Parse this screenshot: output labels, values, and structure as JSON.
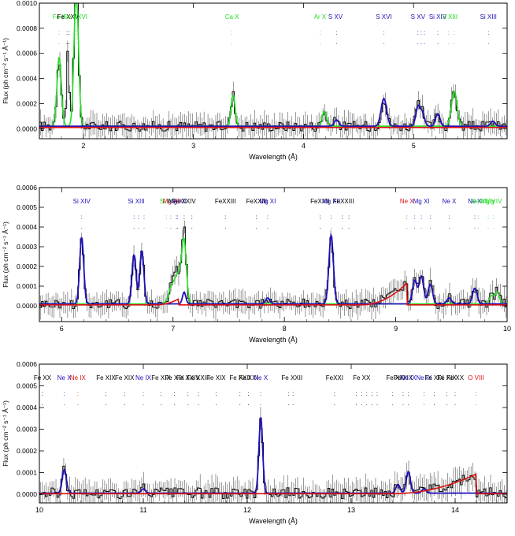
{
  "colors": {
    "data": "#000000",
    "data_fill": "#8c8c8c",
    "model_blue": "#1f10b8",
    "model_green": "#22dd22",
    "model_red": "#dd1111",
    "line_black": "#000000"
  },
  "chart_data": [
    {
      "type": "line",
      "xlabel": "Wavelength (Å)",
      "ylabel": "Flux (ph cm⁻² s⁻¹ Å⁻¹)",
      "xlim": [
        1.6,
        5.85
      ],
      "ylim": [
        -8e-05,
        0.001
      ],
      "xticks": [
        2,
        3,
        4,
        5
      ],
      "yticks": [
        0.0,
        0.0002,
        0.0004,
        0.0006,
        0.0008,
        0.001
      ],
      "ytick_labels": [
        "0.0000",
        "0.0002",
        "0.0004",
        "0.0006",
        "0.0008",
        "0.0010"
      ],
      "baseline": 2e-05,
      "noise": 4e-05,
      "lines": [
        {
          "label": "Fe K",
          "x": 1.78,
          "color": "green",
          "dots": [
            1.78
          ]
        },
        {
          "label": "Fe XXV",
          "x": 1.86,
          "color": "black",
          "dots": [
            1.85,
            1.87
          ]
        },
        {
          "label": "Fe XXVI",
          "x": 1.93,
          "color": "green",
          "dots": [
            1.92,
            1.94
          ]
        },
        {
          "label": "Ca X",
          "x": 3.35,
          "color": "green",
          "dots": [
            3.35
          ]
        },
        {
          "label": "Ar X",
          "x": 4.15,
          "color": "green",
          "dots": [
            4.15
          ]
        },
        {
          "label": "S XV",
          "x": 4.29,
          "color": "blue",
          "dots": [
            4.3
          ]
        },
        {
          "label": "S XVI",
          "x": 4.73,
          "color": "blue",
          "dots": [
            4.73
          ]
        },
        {
          "label": "S XV",
          "x": 5.04,
          "color": "blue",
          "dots": [
            5.04,
            5.07,
            5.1
          ]
        },
        {
          "label": "Si XIV",
          "x": 5.22,
          "color": "blue",
          "dots": [
            5.22
          ]
        },
        {
          "label": "S XIII",
          "x": 5.33,
          "color": "green",
          "dots": [
            5.32,
            5.37
          ]
        },
        {
          "label": "Si XIII",
          "x": 5.68,
          "color": "blue",
          "dots": [
            5.68
          ]
        }
      ],
      "peaks": [
        {
          "x": 1.78,
          "h": 0.00055,
          "w": 0.02,
          "c": "green"
        },
        {
          "x": 1.86,
          "h": 0.0006,
          "w": 0.012,
          "c": "data"
        },
        {
          "x": 1.935,
          "h": 0.0011,
          "w": 0.02,
          "c": "green"
        },
        {
          "x": 3.36,
          "h": 0.00025,
          "w": 0.018,
          "c": "green"
        },
        {
          "x": 4.19,
          "h": 0.00012,
          "w": 0.02,
          "c": "green"
        },
        {
          "x": 4.3,
          "h": 5e-05,
          "w": 0.02,
          "c": "blue"
        },
        {
          "x": 4.73,
          "h": 0.00022,
          "w": 0.025,
          "c": "blue"
        },
        {
          "x": 5.04,
          "h": 0.00015,
          "w": 0.02,
          "c": "blue"
        },
        {
          "x": 5.08,
          "h": 0.0001,
          "w": 0.02,
          "c": "blue"
        },
        {
          "x": 5.22,
          "h": 0.0001,
          "w": 0.02,
          "c": "blue"
        },
        {
          "x": 5.37,
          "h": 0.00028,
          "w": 0.025,
          "c": "green"
        },
        {
          "x": 5.72,
          "h": 4e-05,
          "w": 0.02,
          "c": "blue"
        }
      ],
      "red_ramps": []
    },
    {
      "type": "line",
      "xlabel": "Wavelength (Å)",
      "ylabel": "Flux (ph cm⁻² s⁻¹ Å⁻¹)",
      "xlim": [
        5.8,
        10.0
      ],
      "ylim": [
        -8e-05,
        0.0006
      ],
      "xticks": [
        6,
        7,
        8,
        9,
        10
      ],
      "yticks": [
        0.0,
        0.0001,
        0.0002,
        0.0003,
        0.0004,
        0.0005,
        0.0006
      ],
      "ytick_labels": [
        "0.0000",
        "0.0001",
        "0.0002",
        "0.0003",
        "0.0004",
        "0.0005",
        "0.0006"
      ],
      "baseline": 1e-05,
      "noise": 2.5e-05,
      "lines": [
        {
          "label": "Si XIV",
          "x": 6.18,
          "color": "blue",
          "dots": [
            6.18
          ]
        },
        {
          "label": "Si XIII",
          "x": 6.67,
          "color": "blue",
          "dots": [
            6.65,
            6.69,
            6.74
          ]
        },
        {
          "label": "Si IX",
          "x": 6.94,
          "color": "green",
          "dots": [
            6.94
          ]
        },
        {
          "label": "Mg XII",
          "x": 6.99,
          "color": "red",
          "dots": [
            6.98
          ]
        },
        {
          "label": "Mg XII",
          "x": 7.04,
          "color": "blue",
          "dots": [
            7.03,
            7.04
          ]
        },
        {
          "label": "Fe XXIV",
          "x": 7.1,
          "color": "black",
          "dots": [
            7.1,
            7.17
          ]
        },
        {
          "label": "FeXXIII",
          "x": 7.47,
          "color": "black",
          "dots": [
            7.47
          ]
        },
        {
          "label": "FeXXIII",
          "x": 7.75,
          "color": "black",
          "dots": [
            7.75
          ]
        },
        {
          "label": "Mg XI",
          "x": 7.85,
          "color": "blue",
          "dots": [
            7.85
          ]
        },
        {
          "label": "FeXXII",
          "x": 8.32,
          "color": "black",
          "dots": [
            8.32
          ]
        },
        {
          "label": "Mg XII",
          "x": 8.42,
          "color": "blue",
          "dots": [
            8.42
          ]
        },
        {
          "label": "FeXXIII",
          "x": 8.53,
          "color": "black",
          "dots": [
            8.52,
            8.58
          ]
        },
        {
          "label": "Ne X",
          "x": 9.1,
          "color": "red",
          "dots": [
            9.1
          ]
        },
        {
          "label": "Mg XI",
          "x": 9.23,
          "color": "blue",
          "dots": [
            9.17,
            9.23,
            9.31
          ]
        },
        {
          "label": "Ne X",
          "x": 9.48,
          "color": "blue",
          "dots": [
            9.48
          ]
        },
        {
          "label": "Ne X",
          "x": 9.71,
          "color": "blue",
          "dots": [
            9.71
          ]
        },
        {
          "label": "Ne X",
          "x": 9.74,
          "color": "green",
          "dots": [
            9.74
          ]
        },
        {
          "label": "Mg V",
          "x": 9.83,
          "color": "green",
          "dots": [
            9.83
          ]
        },
        {
          "label": "Mg IV",
          "x": 9.88,
          "color": "green",
          "dots": [
            9.88
          ]
        }
      ],
      "peaks": [
        {
          "x": 6.18,
          "h": 0.00034,
          "w": 0.018,
          "c": "blue"
        },
        {
          "x": 6.65,
          "h": 0.00025,
          "w": 0.018,
          "c": "blue"
        },
        {
          "x": 6.72,
          "h": 0.00027,
          "w": 0.018,
          "c": "blue"
        },
        {
          "x": 6.99,
          "h": 8e-05,
          "w": 0.03,
          "c": "green"
        },
        {
          "x": 7.05,
          "h": 0.00014,
          "w": 0.03,
          "c": "green"
        },
        {
          "x": 7.1,
          "h": 0.0003,
          "w": 0.02,
          "c": "green"
        },
        {
          "x": 7.1,
          "h": 6e-05,
          "w": 0.015,
          "c": "blue"
        },
        {
          "x": 7.85,
          "h": 3e-05,
          "w": 0.02,
          "c": "blue"
        },
        {
          "x": 8.42,
          "h": 0.00035,
          "w": 0.02,
          "c": "blue"
        },
        {
          "x": 9.17,
          "h": 0.00012,
          "w": 0.02,
          "c": "blue"
        },
        {
          "x": 9.23,
          "h": 0.00014,
          "w": 0.02,
          "c": "blue"
        },
        {
          "x": 9.31,
          "h": 0.0001,
          "w": 0.02,
          "c": "blue"
        },
        {
          "x": 9.48,
          "h": 3e-05,
          "w": 0.02,
          "c": "blue"
        },
        {
          "x": 9.71,
          "h": 8e-05,
          "w": 0.02,
          "c": "blue"
        },
        {
          "x": 9.86,
          "h": 4e-05,
          "w": 0.02,
          "c": "green"
        },
        {
          "x": 9.91,
          "h": 6e-05,
          "w": 0.02,
          "c": "green"
        }
      ],
      "red_ramps": [
        {
          "x0": 8.7,
          "x1": 9.1,
          "h": 0.00011
        },
        {
          "x0": 6.85,
          "x1": 7.05,
          "h": 3e-05
        }
      ]
    },
    {
      "type": "line",
      "xlabel": "Wavelength (Å)",
      "ylabel": "Flux (ph cm⁻² s⁻¹ Å⁻¹)",
      "xlim": [
        10.0,
        14.5
      ],
      "ylim": [
        -4e-05,
        0.0006
      ],
      "xticks": [
        10,
        11,
        12,
        13,
        14
      ],
      "yticks": [
        0.0,
        0.0001,
        0.0002,
        0.0003,
        0.0004,
        0.0005,
        0.0006
      ],
      "ytick_labels": [
        "0.0000",
        "0.0001",
        "0.0002",
        "0.0003",
        "0.0004",
        "0.0005",
        "0.0006"
      ],
      "baseline": 5e-06,
      "noise": 2.5e-05,
      "lines": [
        {
          "label": "Fe XX",
          "x": 10.03,
          "color": "black",
          "dots": [
            10.03
          ]
        },
        {
          "label": "Ne X",
          "x": 10.24,
          "color": "blue",
          "dots": [
            10.24
          ]
        },
        {
          "label": "Ne IX",
          "x": 10.37,
          "color": "red",
          "dots": [
            10.37
          ]
        },
        {
          "label": "Fe XIX",
          "x": 10.64,
          "color": "black",
          "dots": [
            10.64
          ]
        },
        {
          "label": "Fe XIX",
          "x": 10.82,
          "color": "black",
          "dots": [
            10.82
          ]
        },
        {
          "label": "Ne IX",
          "x": 11.0,
          "color": "blue",
          "dots": [
            11.0
          ]
        },
        {
          "label": "Fe XIX",
          "x": 11.17,
          "color": "black",
          "dots": [
            11.17
          ]
        },
        {
          "label": "Fe XIX",
          "x": 11.3,
          "color": "black",
          "dots": [
            11.3
          ]
        },
        {
          "label": "Fe XXIV",
          "x": 11.43,
          "color": "black",
          "dots": [
            11.43
          ]
        },
        {
          "label": "Fe XXIII",
          "x": 11.53,
          "color": "black",
          "dots": [
            11.53
          ]
        },
        {
          "label": "Fe XIX",
          "x": 11.7,
          "color": "black",
          "dots": [
            11.7
          ]
        },
        {
          "label": "Fe XXII",
          "x": 11.93,
          "color": "black",
          "dots": [
            11.93
          ]
        },
        {
          "label": "Fe XXI",
          "x": 12.01,
          "color": "black",
          "dots": [
            12.01
          ]
        },
        {
          "label": "Ne X",
          "x": 12.13,
          "color": "blue",
          "dots": [
            12.13
          ]
        },
        {
          "label": "Fe XXII",
          "x": 12.43,
          "color": "black",
          "dots": [
            12.4,
            12.44
          ]
        },
        {
          "label": "FeXXI",
          "x": 12.84,
          "color": "black",
          "dots": [
            12.84
          ]
        },
        {
          "label": "Fe XX",
          "x": 13.1,
          "color": "black",
          "dots": [
            13.05,
            13.1,
            13.15,
            13.2,
            13.25
          ]
        },
        {
          "label": "Fe XX",
          "x": 13.42,
          "color": "black",
          "dots": [
            13.4
          ]
        },
        {
          "label": "Fe XIX",
          "x": 13.5,
          "color": "black",
          "dots": [
            13.5
          ]
        },
        {
          "label": "Ne IX",
          "x": 13.55,
          "color": "blue",
          "dots": [
            13.55
          ]
        },
        {
          "label": "Ne IX",
          "x": 13.7,
          "color": "blue",
          "dots": [
            13.7
          ]
        },
        {
          "label": "Fe XIX",
          "x": 13.8,
          "color": "black",
          "dots": [
            13.8
          ]
        },
        {
          "label": "Fe XIX",
          "x": 13.92,
          "color": "black",
          "dots": [
            13.92
          ]
        },
        {
          "label": "Fe XX",
          "x": 14.0,
          "color": "black",
          "dots": [
            14.0
          ]
        },
        {
          "label": "O VIII",
          "x": 14.2,
          "color": "red",
          "dots": [
            14.2
          ]
        }
      ],
      "peaks": [
        {
          "x": 10.24,
          "h": 0.00011,
          "w": 0.02,
          "c": "blue"
        },
        {
          "x": 11.0,
          "h": 2e-05,
          "w": 0.02,
          "c": "blue"
        },
        {
          "x": 12.13,
          "h": 0.00035,
          "w": 0.018,
          "c": "blue"
        },
        {
          "x": 13.45,
          "h": 4e-05,
          "w": 0.02,
          "c": "blue"
        },
        {
          "x": 13.55,
          "h": 0.0001,
          "w": 0.02,
          "c": "blue"
        },
        {
          "x": 13.7,
          "h": 2e-05,
          "w": 0.02,
          "c": "blue"
        }
      ],
      "red_ramps": [
        {
          "x0": 13.4,
          "x1": 14.2,
          "h": 9e-05
        }
      ]
    }
  ]
}
